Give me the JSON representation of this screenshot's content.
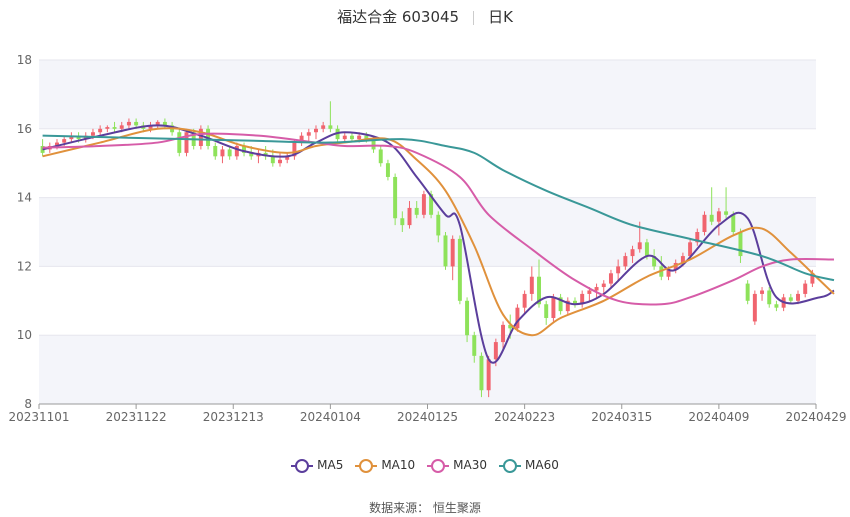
{
  "header": {
    "title": "福达合金 603045",
    "period": "日K"
  },
  "footer": {
    "source_label": "数据来源：",
    "source_name": "恒生聚源"
  },
  "colors": {
    "up": "#f0646e",
    "down": "#8ee25a",
    "MA5": "#5b3e9c",
    "MA10": "#e0913c",
    "MA30": "#d65ca8",
    "MA60": "#3a9898",
    "grid": "#e6e6ee",
    "band": "#f4f5fa"
  },
  "chart_data": {
    "type": "candlestick",
    "title": "福达合金 603045",
    "ylim": [
      8,
      18
    ],
    "yticks": [
      8,
      10,
      12,
      14,
      16,
      18
    ],
    "xtick_labels": [
      "20231101",
      "20231122",
      "20231213",
      "20240104",
      "20240125",
      "20240223",
      "20240315",
      "20240409",
      "20240429"
    ],
    "legend": [
      "MA5",
      "MA10",
      "MA30",
      "MA60"
    ],
    "legend_position": "bottom",
    "candles": [
      {
        "o": 15.5,
        "h": 15.7,
        "l": 15.2,
        "c": 15.3
      },
      {
        "o": 15.4,
        "h": 15.6,
        "l": 15.3,
        "c": 15.5
      },
      {
        "o": 15.5,
        "h": 15.7,
        "l": 15.4,
        "c": 15.6
      },
      {
        "o": 15.6,
        "h": 15.8,
        "l": 15.5,
        "c": 15.7
      },
      {
        "o": 15.7,
        "h": 15.9,
        "l": 15.6,
        "c": 15.8
      },
      {
        "o": 15.8,
        "h": 15.9,
        "l": 15.6,
        "c": 15.7
      },
      {
        "o": 15.7,
        "h": 15.9,
        "l": 15.6,
        "c": 15.8
      },
      {
        "o": 15.8,
        "h": 16.0,
        "l": 15.7,
        "c": 15.9
      },
      {
        "o": 15.9,
        "h": 16.1,
        "l": 15.8,
        "c": 16.0
      },
      {
        "o": 16.0,
        "h": 16.1,
        "l": 15.9,
        "c": 16.05
      },
      {
        "o": 16.05,
        "h": 16.2,
        "l": 15.9,
        "c": 16.0
      },
      {
        "o": 16.0,
        "h": 16.2,
        "l": 15.9,
        "c": 16.1
      },
      {
        "o": 16.1,
        "h": 16.3,
        "l": 16.0,
        "c": 16.2
      },
      {
        "o": 16.2,
        "h": 16.3,
        "l": 16.0,
        "c": 16.1
      },
      {
        "o": 16.1,
        "h": 16.2,
        "l": 15.9,
        "c": 16.0
      },
      {
        "o": 16.0,
        "h": 16.2,
        "l": 15.9,
        "c": 16.1
      },
      {
        "o": 16.1,
        "h": 16.25,
        "l": 16.0,
        "c": 16.2
      },
      {
        "o": 16.2,
        "h": 16.3,
        "l": 16.0,
        "c": 16.1
      },
      {
        "o": 16.1,
        "h": 16.2,
        "l": 15.8,
        "c": 15.9
      },
      {
        "o": 15.9,
        "h": 16.0,
        "l": 15.2,
        "c": 15.3
      },
      {
        "o": 15.3,
        "h": 16.0,
        "l": 15.2,
        "c": 15.9
      },
      {
        "o": 15.9,
        "h": 16.0,
        "l": 15.4,
        "c": 15.5
      },
      {
        "o": 15.5,
        "h": 16.1,
        "l": 15.4,
        "c": 16.0
      },
      {
        "o": 16.0,
        "h": 16.1,
        "l": 15.4,
        "c": 15.5
      },
      {
        "o": 15.5,
        "h": 15.6,
        "l": 15.1,
        "c": 15.2
      },
      {
        "o": 15.2,
        "h": 15.5,
        "l": 15.0,
        "c": 15.4
      },
      {
        "o": 15.4,
        "h": 15.5,
        "l": 15.1,
        "c": 15.2
      },
      {
        "o": 15.2,
        "h": 15.6,
        "l": 15.1,
        "c": 15.5
      },
      {
        "o": 15.5,
        "h": 15.6,
        "l": 15.2,
        "c": 15.3
      },
      {
        "o": 15.3,
        "h": 15.5,
        "l": 15.1,
        "c": 15.2
      },
      {
        "o": 15.2,
        "h": 15.4,
        "l": 15.0,
        "c": 15.3
      },
      {
        "o": 15.3,
        "h": 15.5,
        "l": 15.1,
        "c": 15.2
      },
      {
        "o": 15.2,
        "h": 15.4,
        "l": 14.9,
        "c": 15.0
      },
      {
        "o": 15.0,
        "h": 15.3,
        "l": 14.9,
        "c": 15.1
      },
      {
        "o": 15.1,
        "h": 15.3,
        "l": 15.0,
        "c": 15.2
      },
      {
        "o": 15.2,
        "h": 15.7,
        "l": 15.1,
        "c": 15.6
      },
      {
        "o": 15.6,
        "h": 15.9,
        "l": 15.5,
        "c": 15.8
      },
      {
        "o": 15.8,
        "h": 16.0,
        "l": 15.6,
        "c": 15.9
      },
      {
        "o": 15.9,
        "h": 16.1,
        "l": 15.7,
        "c": 16.0
      },
      {
        "o": 16.0,
        "h": 16.2,
        "l": 15.9,
        "c": 16.1
      },
      {
        "o": 16.1,
        "h": 16.8,
        "l": 15.9,
        "c": 16.0
      },
      {
        "o": 16.0,
        "h": 16.1,
        "l": 15.6,
        "c": 15.7
      },
      {
        "o": 15.7,
        "h": 15.9,
        "l": 15.6,
        "c": 15.8
      },
      {
        "o": 15.8,
        "h": 15.9,
        "l": 15.6,
        "c": 15.7
      },
      {
        "o": 15.7,
        "h": 15.9,
        "l": 15.6,
        "c": 15.8
      },
      {
        "o": 15.8,
        "h": 15.9,
        "l": 15.6,
        "c": 15.7
      },
      {
        "o": 15.7,
        "h": 15.8,
        "l": 15.3,
        "c": 15.4
      },
      {
        "o": 15.4,
        "h": 15.5,
        "l": 14.9,
        "c": 15.0
      },
      {
        "o": 15.0,
        "h": 15.1,
        "l": 14.5,
        "c": 14.6
      },
      {
        "o": 14.6,
        "h": 14.7,
        "l": 13.2,
        "c": 13.4
      },
      {
        "o": 13.4,
        "h": 13.6,
        "l": 13.0,
        "c": 13.2
      },
      {
        "o": 13.2,
        "h": 13.9,
        "l": 13.1,
        "c": 13.7
      },
      {
        "o": 13.7,
        "h": 13.9,
        "l": 13.4,
        "c": 13.5
      },
      {
        "o": 13.5,
        "h": 14.2,
        "l": 13.4,
        "c": 14.1
      },
      {
        "o": 14.1,
        "h": 14.2,
        "l": 13.4,
        "c": 13.5
      },
      {
        "o": 13.5,
        "h": 13.6,
        "l": 12.7,
        "c": 12.9
      },
      {
        "o": 12.9,
        "h": 13.0,
        "l": 11.9,
        "c": 12.0
      },
      {
        "o": 12.0,
        "h": 12.9,
        "l": 11.6,
        "c": 12.8
      },
      {
        "o": 12.8,
        "h": 12.9,
        "l": 10.9,
        "c": 11.0
      },
      {
        "o": 11.0,
        "h": 11.1,
        "l": 9.8,
        "c": 10.0
      },
      {
        "o": 10.0,
        "h": 10.1,
        "l": 9.2,
        "c": 9.4
      },
      {
        "o": 9.4,
        "h": 9.5,
        "l": 8.2,
        "c": 8.4
      },
      {
        "o": 8.4,
        "h": 9.4,
        "l": 8.2,
        "c": 9.3
      },
      {
        "o": 9.3,
        "h": 9.9,
        "l": 9.1,
        "c": 9.8
      },
      {
        "o": 9.8,
        "h": 10.4,
        "l": 9.6,
        "c": 10.3
      },
      {
        "o": 10.3,
        "h": 10.6,
        "l": 9.9,
        "c": 10.2
      },
      {
        "o": 10.2,
        "h": 10.9,
        "l": 10.1,
        "c": 10.8
      },
      {
        "o": 10.8,
        "h": 11.3,
        "l": 10.6,
        "c": 11.2
      },
      {
        "o": 11.2,
        "h": 12.0,
        "l": 11.0,
        "c": 11.7
      },
      {
        "o": 11.7,
        "h": 12.2,
        "l": 10.8,
        "c": 10.9
      },
      {
        "o": 10.9,
        "h": 11.0,
        "l": 10.3,
        "c": 10.5
      },
      {
        "o": 10.5,
        "h": 11.2,
        "l": 10.4,
        "c": 11.1
      },
      {
        "o": 11.1,
        "h": 11.2,
        "l": 10.6,
        "c": 10.7
      },
      {
        "o": 10.7,
        "h": 11.1,
        "l": 10.6,
        "c": 11.0
      },
      {
        "o": 11.0,
        "h": 11.1,
        "l": 10.8,
        "c": 10.9
      },
      {
        "o": 10.9,
        "h": 11.3,
        "l": 10.8,
        "c": 11.2
      },
      {
        "o": 11.2,
        "h": 11.4,
        "l": 11.0,
        "c": 11.3
      },
      {
        "o": 11.3,
        "h": 11.5,
        "l": 11.1,
        "c": 11.4
      },
      {
        "o": 11.4,
        "h": 11.6,
        "l": 11.2,
        "c": 11.5
      },
      {
        "o": 11.5,
        "h": 11.9,
        "l": 11.4,
        "c": 11.8
      },
      {
        "o": 11.8,
        "h": 12.2,
        "l": 11.6,
        "c": 12.0
      },
      {
        "o": 12.0,
        "h": 12.4,
        "l": 11.9,
        "c": 12.3
      },
      {
        "o": 12.3,
        "h": 12.6,
        "l": 12.1,
        "c": 12.5
      },
      {
        "o": 12.5,
        "h": 13.3,
        "l": 12.4,
        "c": 12.7
      },
      {
        "o": 12.7,
        "h": 12.8,
        "l": 12.2,
        "c": 12.3
      },
      {
        "o": 12.3,
        "h": 12.5,
        "l": 11.9,
        "c": 12.0
      },
      {
        "o": 12.0,
        "h": 12.3,
        "l": 11.6,
        "c": 11.7
      },
      {
        "o": 11.7,
        "h": 12.0,
        "l": 11.6,
        "c": 11.9
      },
      {
        "o": 11.9,
        "h": 12.2,
        "l": 11.8,
        "c": 12.1
      },
      {
        "o": 12.1,
        "h": 12.4,
        "l": 12.0,
        "c": 12.3
      },
      {
        "o": 12.3,
        "h": 12.8,
        "l": 12.2,
        "c": 12.7
      },
      {
        "o": 12.7,
        "h": 13.1,
        "l": 12.6,
        "c": 13.0
      },
      {
        "o": 13.0,
        "h": 13.6,
        "l": 12.9,
        "c": 13.5
      },
      {
        "o": 13.5,
        "h": 14.3,
        "l": 13.2,
        "c": 13.3
      },
      {
        "o": 13.3,
        "h": 13.7,
        "l": 12.9,
        "c": 13.6
      },
      {
        "o": 13.6,
        "h": 14.3,
        "l": 13.4,
        "c": 13.5
      },
      {
        "o": 13.5,
        "h": 13.6,
        "l": 12.9,
        "c": 13.0
      },
      {
        "o": 13.0,
        "h": 13.1,
        "l": 12.1,
        "c": 12.3
      },
      {
        "o": 11.5,
        "h": 11.6,
        "l": 10.9,
        "c": 11.0
      },
      {
        "o": 10.4,
        "h": 11.3,
        "l": 10.3,
        "c": 11.2
      },
      {
        "o": 11.2,
        "h": 11.4,
        "l": 11.0,
        "c": 11.3
      },
      {
        "o": 11.3,
        "h": 11.4,
        "l": 10.8,
        "c": 10.9
      },
      {
        "o": 10.9,
        "h": 11.0,
        "l": 10.7,
        "c": 10.8
      },
      {
        "o": 10.8,
        "h": 11.2,
        "l": 10.7,
        "c": 11.1
      },
      {
        "o": 11.1,
        "h": 11.2,
        "l": 10.9,
        "c": 11.0
      },
      {
        "o": 11.0,
        "h": 11.3,
        "l": 10.9,
        "c": 11.2
      },
      {
        "o": 11.2,
        "h": 11.6,
        "l": 11.1,
        "c": 11.5
      },
      {
        "o": 11.5,
        "h": 11.9,
        "l": 11.4,
        "c": 11.8
      }
    ],
    "series": [
      {
        "name": "MA5",
        "points": [
          [
            0,
            15.4
          ],
          [
            8,
            15.8
          ],
          [
            16,
            16.1
          ],
          [
            22,
            15.8
          ],
          [
            28,
            15.35
          ],
          [
            34,
            15.2
          ],
          [
            38,
            15.6
          ],
          [
            42,
            15.9
          ],
          [
            48,
            15.6
          ],
          [
            52,
            14.6
          ],
          [
            56,
            13.5
          ],
          [
            58,
            13.2
          ],
          [
            62,
            9.3
          ],
          [
            66,
            10.4
          ],
          [
            70,
            11.1
          ],
          [
            74,
            10.9
          ],
          [
            78,
            11.2
          ],
          [
            84,
            12.3
          ],
          [
            88,
            11.9
          ],
          [
            94,
            13.2
          ],
          [
            98,
            13.4
          ],
          [
            102,
            11.1
          ],
          [
            108,
            11.1
          ],
          [
            110,
            11.3
          ]
        ]
      },
      {
        "name": "MA10",
        "points": [
          [
            0,
            15.2
          ],
          [
            8,
            15.6
          ],
          [
            16,
            16.0
          ],
          [
            22,
            15.9
          ],
          [
            28,
            15.5
          ],
          [
            34,
            15.3
          ],
          [
            38,
            15.5
          ],
          [
            42,
            15.6
          ],
          [
            48,
            15.7
          ],
          [
            52,
            15.1
          ],
          [
            56,
            14.2
          ],
          [
            60,
            12.6
          ],
          [
            64,
            10.6
          ],
          [
            68,
            10.0
          ],
          [
            72,
            10.5
          ],
          [
            78,
            11.0
          ],
          [
            84,
            11.7
          ],
          [
            90,
            12.2
          ],
          [
            96,
            12.9
          ],
          [
            100,
            13.1
          ],
          [
            104,
            12.4
          ],
          [
            108,
            11.6
          ],
          [
            110,
            11.2
          ]
        ]
      },
      {
        "name": "MA30",
        "points": [
          [
            0,
            15.45
          ],
          [
            8,
            15.5
          ],
          [
            16,
            15.6
          ],
          [
            22,
            15.85
          ],
          [
            30,
            15.8
          ],
          [
            38,
            15.6
          ],
          [
            42,
            15.5
          ],
          [
            48,
            15.5
          ],
          [
            52,
            15.3
          ],
          [
            58,
            14.6
          ],
          [
            62,
            13.5
          ],
          [
            68,
            12.5
          ],
          [
            74,
            11.6
          ],
          [
            80,
            11.0
          ],
          [
            86,
            10.9
          ],
          [
            90,
            11.1
          ],
          [
            96,
            11.6
          ],
          [
            100,
            12.0
          ],
          [
            104,
            12.2
          ],
          [
            110,
            12.2
          ]
        ]
      },
      {
        "name": "MA60",
        "points": [
          [
            0,
            15.8
          ],
          [
            10,
            15.75
          ],
          [
            20,
            15.7
          ],
          [
            30,
            15.65
          ],
          [
            40,
            15.6
          ],
          [
            50,
            15.7
          ],
          [
            56,
            15.5
          ],
          [
            60,
            15.3
          ],
          [
            64,
            14.8
          ],
          [
            70,
            14.2
          ],
          [
            76,
            13.7
          ],
          [
            82,
            13.2
          ],
          [
            90,
            12.8
          ],
          [
            100,
            12.3
          ],
          [
            106,
            11.8
          ],
          [
            110,
            11.6
          ]
        ]
      }
    ]
  }
}
